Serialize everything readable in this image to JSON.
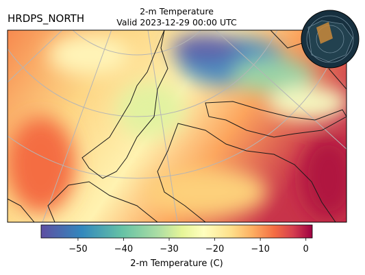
{
  "header": {
    "model": "HRDPS_NORTH",
    "title": "2-m Temperature",
    "valid": "Valid 2023-12-29 00:00 UTC"
  },
  "colorbar": {
    "label": "2-m Temperature (C)",
    "lim": [
      -58.1,
      1.4
    ],
    "ticks": [
      {
        "value": -50,
        "label": "−50"
      },
      {
        "value": -40,
        "label": "−40"
      },
      {
        "value": -30,
        "label": "−30"
      },
      {
        "value": -20,
        "label": "−20"
      },
      {
        "value": -10,
        "label": "−10"
      },
      0
    ]
  }
}
